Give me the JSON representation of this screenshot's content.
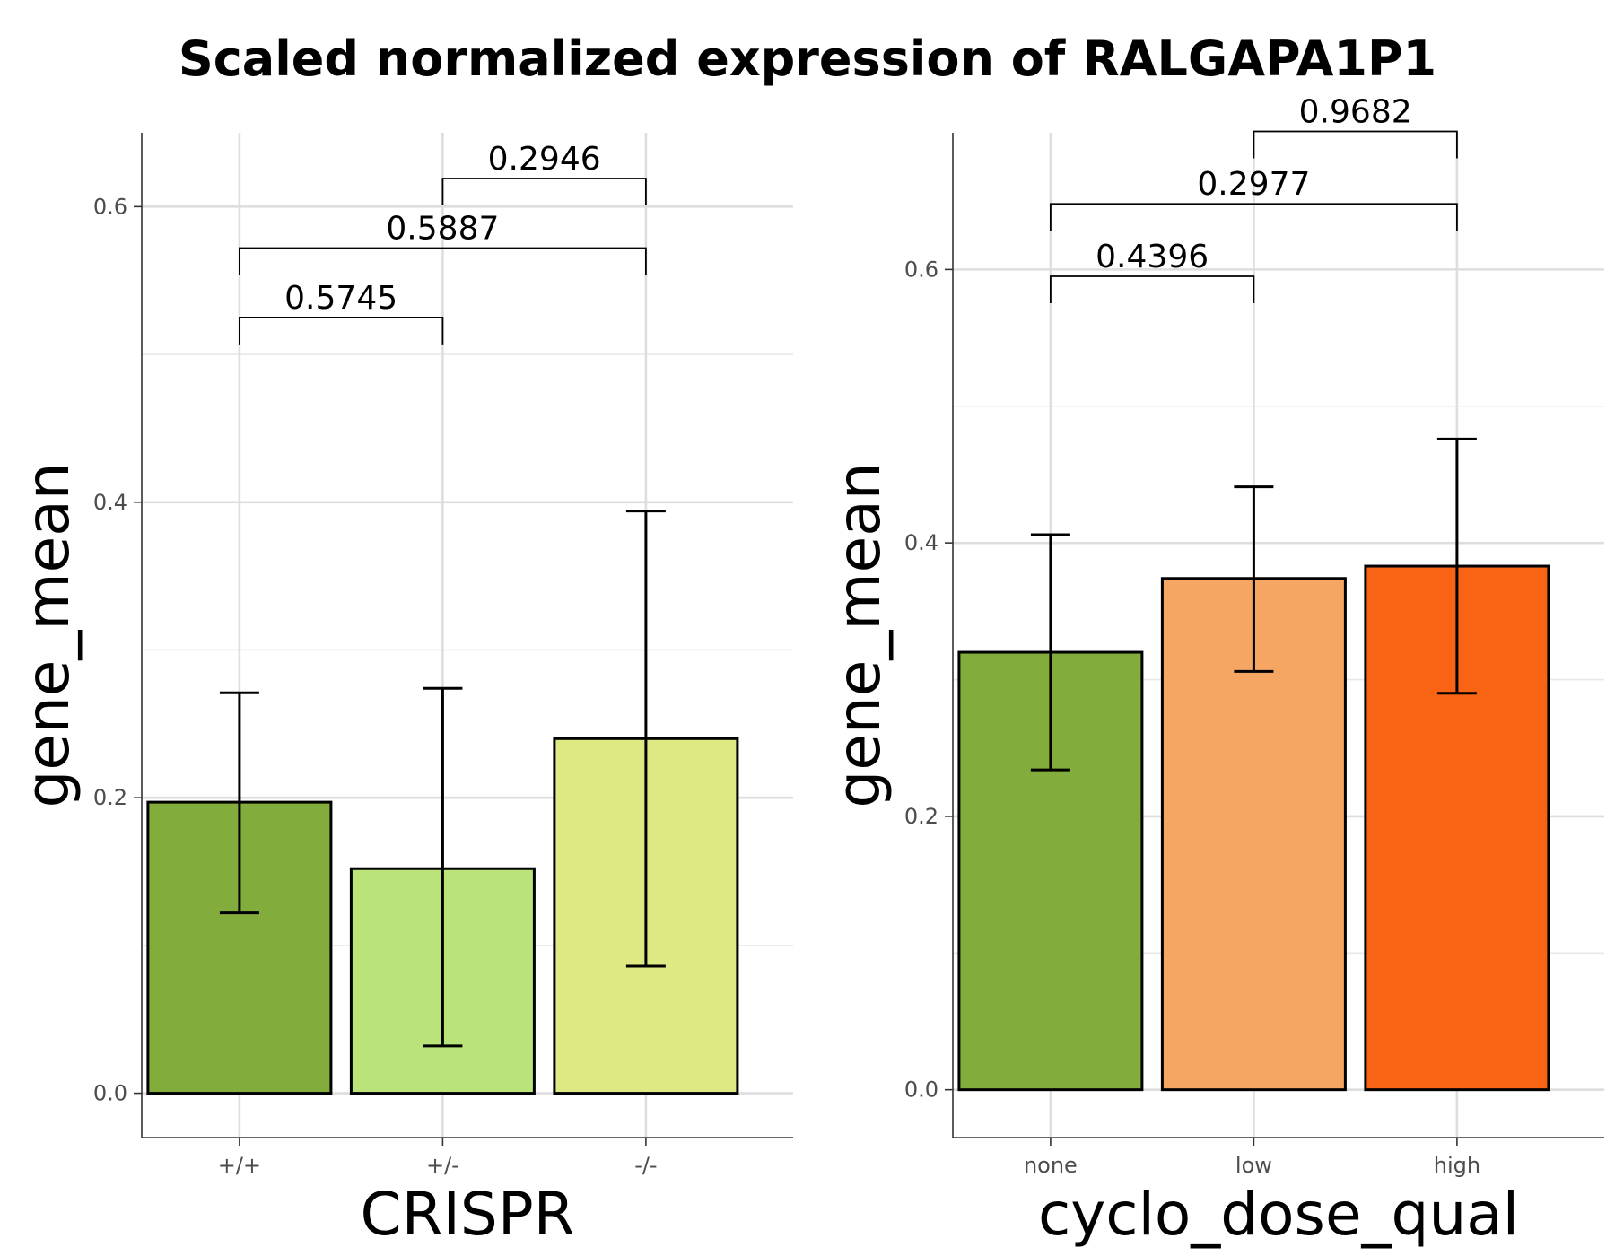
{
  "figure": {
    "title": "Scaled normalized expression of RALGAPA1P1"
  },
  "chart_data": [
    {
      "type": "bar",
      "xlabel": "CRISPR",
      "ylabel": "gene_mean",
      "categories": [
        "+/+",
        "+/-",
        "-/-"
      ],
      "values": [
        0.197,
        0.152,
        0.24
      ],
      "error_low": [
        0.122,
        0.032,
        0.086
      ],
      "error_high": [
        0.271,
        0.274,
        0.394
      ],
      "colors": [
        "#82ad3c",
        "#bae37a",
        "#dfe984"
      ],
      "ylim": [
        -0.03,
        0.65
      ],
      "yticks": [
        0.0,
        0.2,
        0.4,
        0.6
      ],
      "ytick_labels": [
        "0.0",
        "0.2",
        "0.4",
        "0.6"
      ],
      "grid": true,
      "comparisons": [
        {
          "from": 0,
          "to": 1,
          "label": "0.5745",
          "y": 0.525
        },
        {
          "from": 0,
          "to": 2,
          "label": "0.5887",
          "y": 0.572
        },
        {
          "from": 1,
          "to": 2,
          "label": "0.2946",
          "y": 0.619
        }
      ]
    },
    {
      "type": "bar",
      "xlabel": "cyclo_dose_qual",
      "ylabel": "gene_mean",
      "categories": [
        "none",
        "low",
        "high"
      ],
      "values": [
        0.32,
        0.374,
        0.383
      ],
      "error_low": [
        0.234,
        0.306,
        0.29
      ],
      "error_high": [
        0.406,
        0.441,
        0.476
      ],
      "colors": [
        "#82ad3c",
        "#f5a663",
        "#f96414"
      ],
      "ylim": [
        -0.035,
        0.7
      ],
      "yticks": [
        0.0,
        0.2,
        0.4,
        0.6
      ],
      "ytick_labels": [
        "0.0",
        "0.2",
        "0.4",
        "0.6"
      ],
      "grid": true,
      "comparisons": [
        {
          "from": 0,
          "to": 1,
          "label": "0.4396",
          "y": 0.595
        },
        {
          "from": 0,
          "to": 2,
          "label": "0.2977",
          "y": 0.648
        },
        {
          "from": 1,
          "to": 2,
          "label": "0.9682",
          "y": 0.701
        }
      ]
    }
  ]
}
